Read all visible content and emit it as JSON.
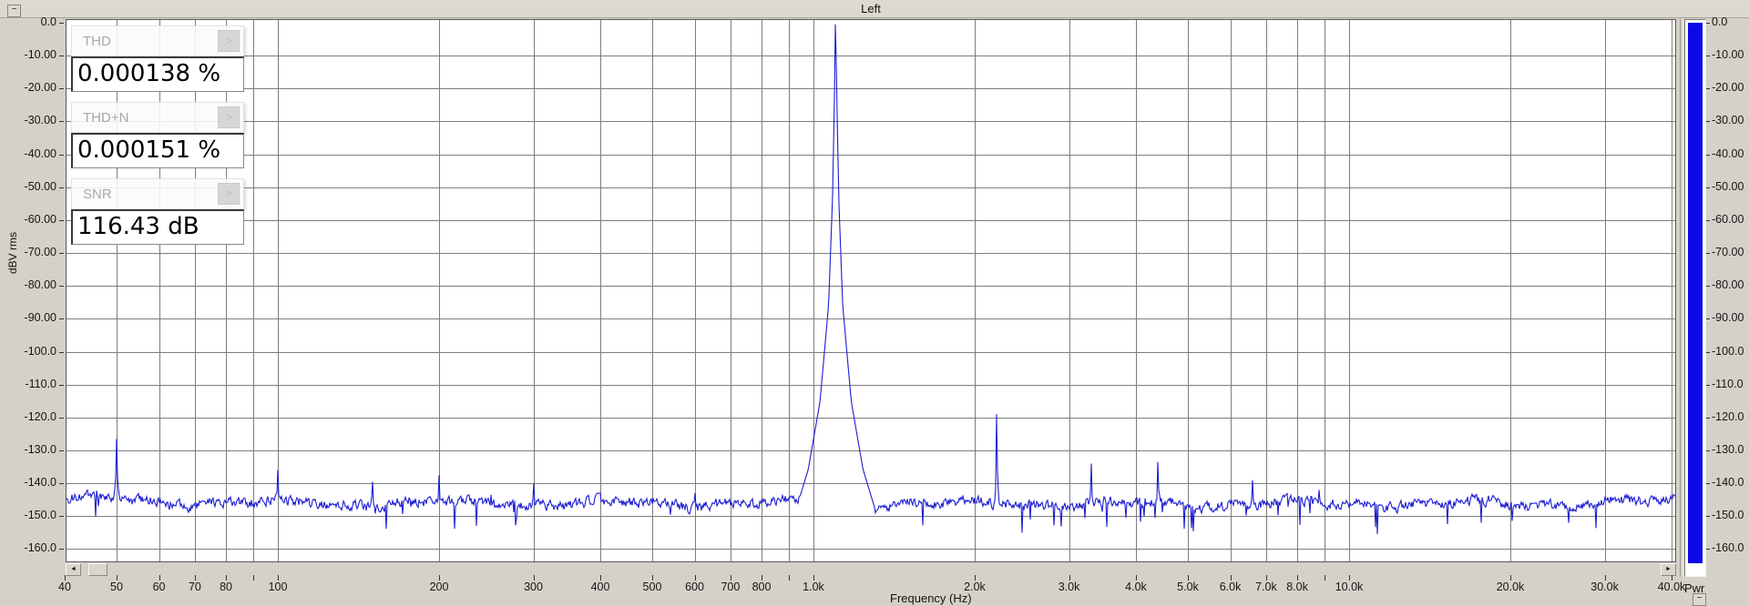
{
  "window": {
    "collapse_glyph": "−"
  },
  "title": "Left",
  "measurements": [
    {
      "label": "THD",
      "value": "0.000138 %",
      "button_glyph": ">"
    },
    {
      "label": "THD+N",
      "value": "0.000151 %",
      "button_glyph": ">"
    },
    {
      "label": "SNR",
      "value": "116.43 dB",
      "button_glyph": ">"
    }
  ],
  "meter": {
    "label": "Pwr",
    "bar_color": "#0b0be8",
    "level_db": 0
  },
  "scrollbar": {
    "left_arrow": "◄",
    "right_arrow": "►"
  },
  "chart_data": {
    "type": "line",
    "title": "Left",
    "xlabel": "Frequency (Hz)",
    "ylabel": "dBV rms",
    "x_scale": "log",
    "xlim": [
      40,
      40000
    ],
    "ylim": [
      -164,
      0
    ],
    "grid": true,
    "legend": "none",
    "trace_color": "#1c1cd2",
    "grid_color": "#7d7d7d",
    "noise_floor_db": -146.2,
    "y_ticks": [
      {
        "db": 0,
        "label": "0.0"
      },
      {
        "db": -10,
        "label": "-10.00"
      },
      {
        "db": -20,
        "label": "-20.00"
      },
      {
        "db": -30,
        "label": "-30.00"
      },
      {
        "db": -40,
        "label": "-40.00"
      },
      {
        "db": -50,
        "label": "-50.00"
      },
      {
        "db": -60,
        "label": "-60.00"
      },
      {
        "db": -70,
        "label": "-70.00"
      },
      {
        "db": -80,
        "label": "-80.00"
      },
      {
        "db": -90,
        "label": "-90.00"
      },
      {
        "db": -100,
        "label": "-100.0"
      },
      {
        "db": -110,
        "label": "-110.0"
      },
      {
        "db": -120,
        "label": "-120.0"
      },
      {
        "db": -130,
        "label": "-130.0"
      },
      {
        "db": -140,
        "label": "-140.0"
      },
      {
        "db": -150,
        "label": "-150.0"
      },
      {
        "db": -160,
        "label": "-160.0"
      }
    ],
    "x_ticks": [
      {
        "f": 40,
        "label": "40"
      },
      {
        "f": 50,
        "label": "50"
      },
      {
        "f": 60,
        "label": "60"
      },
      {
        "f": 70,
        "label": "70"
      },
      {
        "f": 80,
        "label": "80"
      },
      {
        "f": 90,
        "label": ""
      },
      {
        "f": 100,
        "label": "100"
      },
      {
        "f": 200,
        "label": "200"
      },
      {
        "f": 300,
        "label": "300"
      },
      {
        "f": 400,
        "label": "400"
      },
      {
        "f": 500,
        "label": "500"
      },
      {
        "f": 600,
        "label": "600"
      },
      {
        "f": 700,
        "label": "700"
      },
      {
        "f": 800,
        "label": "800"
      },
      {
        "f": 900,
        "label": ""
      },
      {
        "f": 1000,
        "label": "1.0k"
      },
      {
        "f": 2000,
        "label": "2.0k"
      },
      {
        "f": 3000,
        "label": "3.0k"
      },
      {
        "f": 4000,
        "label": "4.0k"
      },
      {
        "f": 5000,
        "label": "5.0k"
      },
      {
        "f": 6000,
        "label": "6.0k"
      },
      {
        "f": 7000,
        "label": "7.0k"
      },
      {
        "f": 8000,
        "label": "8.0k"
      },
      {
        "f": 9000,
        "label": ""
      },
      {
        "f": 10000,
        "label": "10.0k"
      },
      {
        "f": 20000,
        "label": "20.0k"
      },
      {
        "f": 30000,
        "label": "30.0k"
      },
      {
        "f": 40000,
        "label": "40.0k"
      }
    ],
    "peaks": [
      {
        "freq_hz": 50,
        "level_db": -126.5,
        "skirt_w": 0.01
      },
      {
        "freq_hz": 100,
        "level_db": -136.0,
        "skirt_w": 0.006
      },
      {
        "freq_hz": 150,
        "level_db": -139.5,
        "skirt_w": 0.005
      },
      {
        "freq_hz": 200,
        "level_db": -137.5,
        "skirt_w": 0.005
      },
      {
        "freq_hz": 250,
        "level_db": -143.5,
        "skirt_w": 0.004
      },
      {
        "freq_hz": 300,
        "level_db": -140.0,
        "skirt_w": 0.004
      },
      {
        "freq_hz": 400,
        "level_db": -143.0,
        "skirt_w": 0.004
      },
      {
        "freq_hz": 600,
        "level_db": -143.0,
        "skirt_w": 0.004
      },
      {
        "freq_hz": 1100,
        "level_db": -0.5,
        "skirt_w": 0.073
      },
      {
        "freq_hz": 2200,
        "level_db": -119.0,
        "skirt_w": 0.0055
      },
      {
        "freq_hz": 3300,
        "level_db": -134.0,
        "skirt_w": 0.005
      },
      {
        "freq_hz": 4400,
        "level_db": -133.5,
        "skirt_w": 0.005
      },
      {
        "freq_hz": 6600,
        "level_db": -139.0,
        "skirt_w": 0.005
      },
      {
        "freq_hz": 8800,
        "level_db": -142.0,
        "skirt_w": 0.004
      }
    ]
  }
}
